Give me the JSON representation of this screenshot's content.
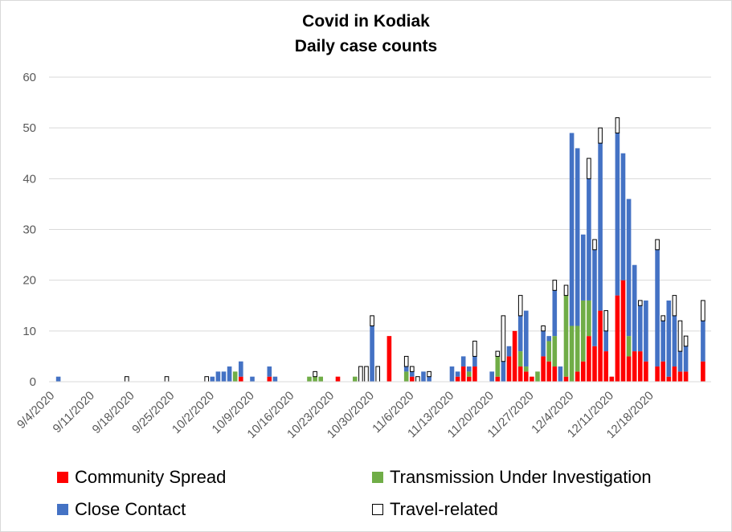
{
  "chart_data": {
    "type": "bar",
    "stacked": true,
    "title": "Covid in Kodiak",
    "subtitle": "Daily case counts",
    "xlabel": "",
    "ylabel": "",
    "ylim": [
      0,
      60
    ],
    "yticks": [
      0,
      10,
      20,
      30,
      40,
      50,
      60
    ],
    "xtick_labels": [
      "9/4/2020",
      "9/11/2020",
      "9/18/2020",
      "9/25/2020",
      "10/2/2020",
      "10/9/2020",
      "10/16/2020",
      "10/23/2020",
      "10/30/2020",
      "11/6/2020",
      "11/13/2020",
      "11/20/2020",
      "11/27/2020",
      "12/4/2020",
      "12/11/2020",
      "12/18/2020"
    ],
    "x_start_date": "9/4/2020",
    "x_end_date": "12/23/2020",
    "grid": true,
    "legend_position": "bottom",
    "series": [
      {
        "name": "Community Spread",
        "color": "#ff0000",
        "points": [
          [
            "10/7/2020",
            1
          ],
          [
            "10/12/2020",
            1
          ],
          [
            "10/24/2020",
            1
          ],
          [
            "11/2/2020",
            9
          ],
          [
            "11/6/2020",
            1
          ],
          [
            "11/14/2020",
            1
          ],
          [
            "11/15/2020",
            3
          ],
          [
            "11/16/2020",
            1
          ],
          [
            "11/17/2020",
            3
          ],
          [
            "11/21/2020",
            1
          ],
          [
            "11/23/2020",
            5
          ],
          [
            "11/24/2020",
            10
          ],
          [
            "11/25/2020",
            3
          ],
          [
            "11/26/2020",
            2
          ],
          [
            "11/27/2020",
            1
          ],
          [
            "11/29/2020",
            5
          ],
          [
            "11/30/2020",
            4
          ],
          [
            "12/1/2020",
            3
          ],
          [
            "12/3/2020",
            1
          ],
          [
            "12/5/2020",
            2
          ],
          [
            "12/6/2020",
            4
          ],
          [
            "12/7/2020",
            9
          ],
          [
            "12/8/2020",
            7
          ],
          [
            "12/9/2020",
            14
          ],
          [
            "12/10/2020",
            6
          ],
          [
            "12/11/2020",
            1
          ],
          [
            "12/12/2020",
            17
          ],
          [
            "12/13/2020",
            20
          ],
          [
            "12/14/2020",
            5
          ],
          [
            "12/15/2020",
            6
          ],
          [
            "12/16/2020",
            6
          ],
          [
            "12/17/2020",
            4
          ],
          [
            "12/19/2020",
            3
          ],
          [
            "12/20/2020",
            4
          ],
          [
            "12/21/2020",
            1
          ],
          [
            "12/22/2020",
            3
          ],
          [
            "12/23/2020",
            2
          ],
          [
            "12/24/2020",
            2
          ],
          [
            "12/27/2020",
            4
          ]
        ]
      },
      {
        "name": "Transmission Under Investigation",
        "color": "#70ad47",
        "points": [
          [
            "10/6/2020",
            2
          ],
          [
            "10/19/2020",
            1
          ],
          [
            "10/20/2020",
            1
          ],
          [
            "10/21/2020",
            1
          ],
          [
            "10/27/2020",
            1
          ],
          [
            "11/5/2020",
            2
          ],
          [
            "11/16/2020",
            1
          ],
          [
            "11/21/2020",
            4
          ],
          [
            "11/25/2020",
            3
          ],
          [
            "11/26/2020",
            1
          ],
          [
            "11/28/2020",
            2
          ],
          [
            "11/30/2020",
            4
          ],
          [
            "12/1/2020",
            6
          ],
          [
            "12/3/2020",
            16
          ],
          [
            "12/4/2020",
            11
          ],
          [
            "12/5/2020",
            9
          ],
          [
            "12/6/2020",
            12
          ],
          [
            "12/7/2020",
            7
          ],
          [
            "12/14/2020",
            4
          ]
        ]
      },
      {
        "name": "Close Contact",
        "color": "#4472c4",
        "points": [
          [
            "9/5/2020",
            1
          ],
          [
            "10/2/2020",
            1
          ],
          [
            "10/3/2020",
            2
          ],
          [
            "10/4/2020",
            2
          ],
          [
            "10/5/2020",
            3
          ],
          [
            "10/7/2020",
            3
          ],
          [
            "10/9/2020",
            1
          ],
          [
            "10/12/2020",
            2
          ],
          [
            "10/13/2020",
            1
          ],
          [
            "10/30/2020",
            11
          ],
          [
            "11/5/2020",
            1
          ],
          [
            "11/6/2020",
            1
          ],
          [
            "11/8/2020",
            2
          ],
          [
            "11/9/2020",
            1
          ],
          [
            "11/13/2020",
            3
          ],
          [
            "11/14/2020",
            1
          ],
          [
            "11/15/2020",
            2
          ],
          [
            "11/16/2020",
            1
          ],
          [
            "11/17/2020",
            2
          ],
          [
            "11/20/2020",
            2
          ],
          [
            "11/22/2020",
            4
          ],
          [
            "11/23/2020",
            2
          ],
          [
            "11/25/2020",
            7
          ],
          [
            "11/26/2020",
            11
          ],
          [
            "11/29/2020",
            5
          ],
          [
            "11/30/2020",
            1
          ],
          [
            "12/1/2020",
            9
          ],
          [
            "12/2/2020",
            3
          ],
          [
            "12/4/2020",
            38
          ],
          [
            "12/5/2020",
            35
          ],
          [
            "12/6/2020",
            13
          ],
          [
            "12/7/2020",
            24
          ],
          [
            "12/8/2020",
            19
          ],
          [
            "12/9/2020",
            33
          ],
          [
            "12/10/2020",
            4
          ],
          [
            "12/12/2020",
            32
          ],
          [
            "12/13/2020",
            25
          ],
          [
            "12/14/2020",
            27
          ],
          [
            "12/15/2020",
            17
          ],
          [
            "12/16/2020",
            9
          ],
          [
            "12/17/2020",
            12
          ],
          [
            "12/19/2020",
            23
          ],
          [
            "12/20/2020",
            8
          ],
          [
            "12/21/2020",
            15
          ],
          [
            "12/22/2020",
            10
          ],
          [
            "12/23/2020",
            4
          ],
          [
            "12/24/2020",
            5
          ],
          [
            "12/27/2020",
            8
          ]
        ]
      },
      {
        "name": "Travel-related",
        "color": "#ffffff",
        "points": [
          [
            "9/17/2020",
            1
          ],
          [
            "9/24/2020",
            1
          ],
          [
            "10/1/2020",
            1
          ],
          [
            "10/20/2020",
            1
          ],
          [
            "10/28/2020",
            3
          ],
          [
            "10/29/2020",
            3
          ],
          [
            "10/30/2020",
            2
          ],
          [
            "10/31/2020",
            3
          ],
          [
            "11/5/2020",
            2
          ],
          [
            "11/6/2020",
            1
          ],
          [
            "11/7/2020",
            1
          ],
          [
            "11/9/2020",
            1
          ],
          [
            "11/17/2020",
            3
          ],
          [
            "11/21/2020",
            1
          ],
          [
            "11/22/2020",
            9
          ],
          [
            "11/25/2020",
            4
          ],
          [
            "11/29/2020",
            1
          ],
          [
            "12/1/2020",
            2
          ],
          [
            "12/3/2020",
            2
          ],
          [
            "12/7/2020",
            4
          ],
          [
            "12/8/2020",
            2
          ],
          [
            "12/9/2020",
            3
          ],
          [
            "12/10/2020",
            4
          ],
          [
            "12/12/2020",
            3
          ],
          [
            "12/16/2020",
            1
          ],
          [
            "12/19/2020",
            2
          ],
          [
            "12/20/2020",
            1
          ],
          [
            "12/22/2020",
            4
          ],
          [
            "12/23/2020",
            6
          ],
          [
            "12/24/2020",
            2
          ],
          [
            "12/27/2020",
            4
          ]
        ]
      }
    ]
  }
}
